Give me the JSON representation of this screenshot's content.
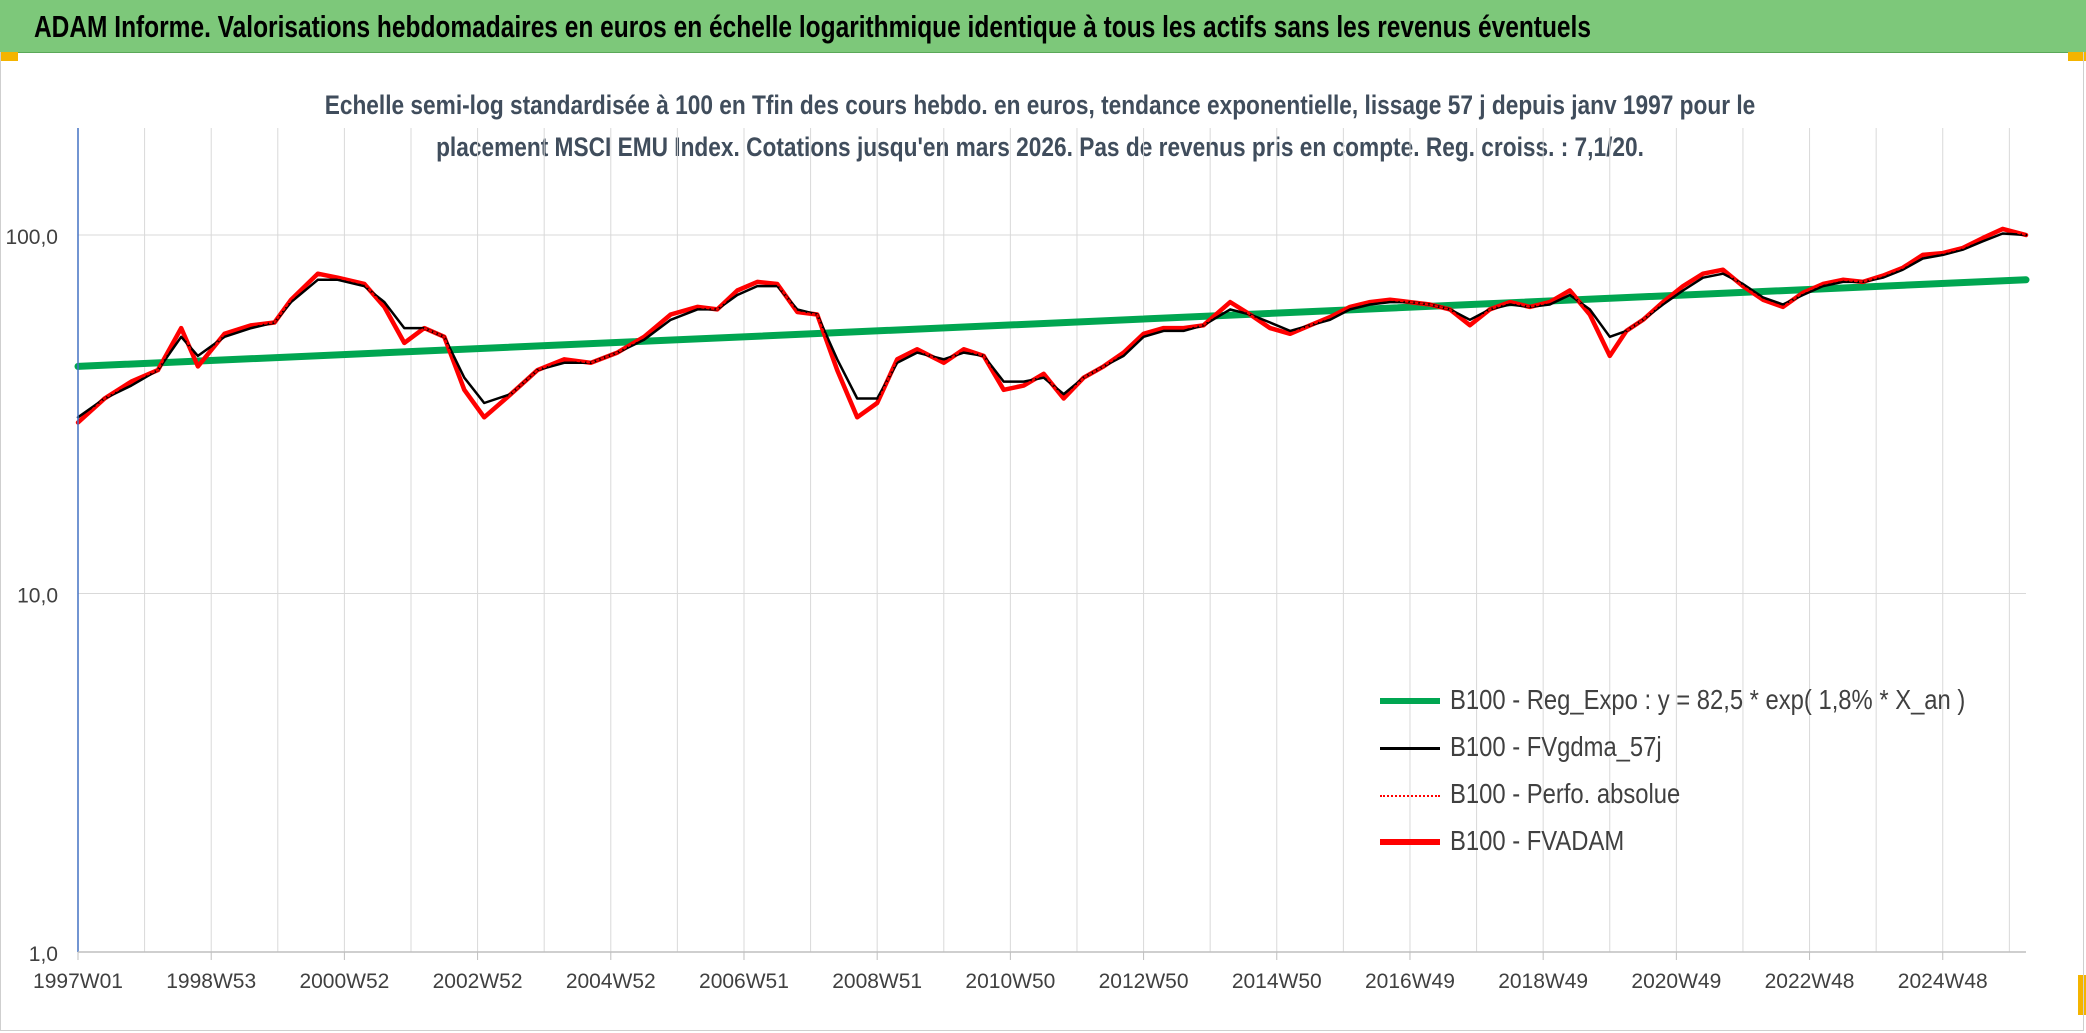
{
  "header": {
    "title": "ADAM Informe. Valorisations hebdomadaires en euros en échelle logarithmique identique à tous les actifs sans les revenus éventuels"
  },
  "subtitle": {
    "line1": "Echelle semi-log standardisée à 100 en Tfin des cours hebdo. en euros, tendance exponentielle, lissage 57 j depuis janv 1997 pour le",
    "line2": "placement MSCI EMU Index. Cotations jusqu'en mars 2026. Pas de revenus pris en compte. Reg. croiss. : 7,1/20."
  },
  "colors": {
    "header_bg": "#7dc87a",
    "reg_expo": "#00a651",
    "fvgdma": "#000000",
    "perfo": "#ff0000",
    "fvadam": "#ff0000",
    "axis": "#4472c4",
    "grid": "#d9d9d9"
  },
  "chart_data": {
    "type": "line",
    "y_scale": "log",
    "ylim": [
      1,
      200
    ],
    "y_ticks": [
      {
        "value": 1,
        "label": "1,0"
      },
      {
        "value": 10,
        "label": "10,0"
      },
      {
        "value": 100,
        "label": "100,0"
      }
    ],
    "x_range": [
      1997.0,
      2026.25
    ],
    "x_ticks": [
      {
        "x": 1997.0,
        "label": "1997W01"
      },
      {
        "x": 1999.0,
        "label": "1998W53"
      },
      {
        "x": 2001.0,
        "label": "2000W52"
      },
      {
        "x": 2003.0,
        "label": "2002W52"
      },
      {
        "x": 2005.0,
        "label": "2004W52"
      },
      {
        "x": 2007.0,
        "label": "2006W51"
      },
      {
        "x": 2009.0,
        "label": "2008W51"
      },
      {
        "x": 2011.0,
        "label": "2010W50"
      },
      {
        "x": 2013.0,
        "label": "2012W50"
      },
      {
        "x": 2015.0,
        "label": "2014W50"
      },
      {
        "x": 2017.0,
        "label": "2016W49"
      },
      {
        "x": 2019.0,
        "label": "2018W49"
      },
      {
        "x": 2021.0,
        "label": "2020W49"
      },
      {
        "x": 2023.0,
        "label": "2022W48"
      },
      {
        "x": 2025.0,
        "label": "2024W48"
      }
    ],
    "vertical_grid_step_years": 1,
    "legend_position": "bottom-right",
    "series": [
      {
        "name": "B100 - Reg_Expo : y = 82,5 * exp( 1,8% *  X_an )",
        "style": "thick-solid",
        "x": [
          1997.0,
          2026.25
        ],
        "y": [
          43,
          75
        ]
      },
      {
        "name": "B100 - FVgdma_57j",
        "style": "thin-solid",
        "x": [
          1997.0,
          1997.4,
          1997.8,
          1998.2,
          1998.55,
          1998.8,
          1999.2,
          1999.6,
          1999.95,
          2000.2,
          2000.6,
          2000.9,
          2001.3,
          2001.6,
          2001.9,
          2002.2,
          2002.5,
          2002.8,
          2003.1,
          2003.5,
          2003.9,
          2004.3,
          2004.7,
          2005.1,
          2005.5,
          2005.9,
          2006.3,
          2006.6,
          2006.9,
          2007.2,
          2007.5,
          2007.8,
          2008.1,
          2008.4,
          2008.7,
          2009.0,
          2009.3,
          2009.6,
          2010.0,
          2010.3,
          2010.6,
          2010.9,
          2011.2,
          2011.5,
          2011.8,
          2012.1,
          2012.4,
          2012.7,
          2013.0,
          2013.3,
          2013.6,
          2013.9,
          2014.3,
          2014.6,
          2014.9,
          2015.2,
          2015.5,
          2015.8,
          2016.1,
          2016.4,
          2016.7,
          2017.0,
          2017.3,
          2017.6,
          2017.9,
          2018.2,
          2018.5,
          2018.8,
          2019.1,
          2019.4,
          2019.7,
          2020.0,
          2020.25,
          2020.5,
          2020.8,
          2021.1,
          2021.4,
          2021.7,
          2022.0,
          2022.3,
          2022.6,
          2022.9,
          2023.2,
          2023.5,
          2023.8,
          2024.1,
          2024.4,
          2024.7,
          2025.0,
          2025.3,
          2025.6,
          2025.9,
          2026.25
        ],
        "y": [
          31,
          35,
          38,
          42,
          52,
          46,
          52,
          55,
          57,
          65,
          75,
          75,
          72,
          65,
          55,
          55,
          52,
          40,
          34,
          36,
          42,
          44,
          44,
          47,
          51,
          58,
          62,
          62,
          68,
          72,
          72,
          62,
          60,
          45,
          35,
          35,
          44,
          47,
          45,
          47,
          46,
          39,
          39,
          40,
          36,
          40,
          43,
          46,
          52,
          54,
          54,
          56,
          62,
          60,
          57,
          54,
          56,
          58,
          62,
          64,
          65,
          65,
          64,
          62,
          58,
          62,
          64,
          63,
          64,
          68,
          62,
          52,
          54,
          58,
          64,
          70,
          76,
          78,
          73,
          67,
          64,
          68,
          72,
          74,
          74,
          76,
          80,
          86,
          88,
          91,
          96,
          101,
          100
        ]
      },
      {
        "name": "B100 - Perfo. absolue",
        "style": "dotted",
        "x": [
          1997.0,
          1997.4,
          1997.8,
          1998.2,
          1998.55,
          1998.8,
          1999.2,
          1999.6,
          1999.95,
          2000.2,
          2000.6,
          2000.9,
          2001.3,
          2001.6,
          2001.9,
          2002.2,
          2002.5,
          2002.8,
          2003.1,
          2003.5,
          2003.9,
          2004.3,
          2004.7,
          2005.1,
          2005.5,
          2005.9,
          2006.3,
          2006.6,
          2006.9,
          2007.2,
          2007.5,
          2007.8,
          2008.1,
          2008.4,
          2008.7,
          2009.0,
          2009.3,
          2009.6,
          2010.0,
          2010.3,
          2010.6,
          2010.9,
          2011.2,
          2011.5,
          2011.8,
          2012.1,
          2012.4,
          2012.7,
          2013.0,
          2013.3,
          2013.6,
          2013.9,
          2014.3,
          2014.6,
          2014.9,
          2015.2,
          2015.5,
          2015.8,
          2016.1,
          2016.4,
          2016.7,
          2017.0,
          2017.3,
          2017.6,
          2017.9,
          2018.2,
          2018.5,
          2018.8,
          2019.1,
          2019.4,
          2019.7,
          2020.0,
          2020.25,
          2020.5,
          2020.8,
          2021.1,
          2021.4,
          2021.7,
          2022.0,
          2022.3,
          2022.6,
          2022.9,
          2023.2,
          2023.5,
          2023.8,
          2024.1,
          2024.4,
          2024.7,
          2025.0,
          2025.3,
          2025.6,
          2025.9,
          2026.25
        ],
        "y": [
          30,
          35,
          39,
          42,
          55,
          43,
          53,
          56,
          57,
          66,
          78,
          76,
          73,
          63,
          50,
          55,
          52,
          37,
          31,
          36,
          42,
          45,
          44,
          47,
          52,
          60,
          63,
          62,
          70,
          74,
          73,
          61,
          60,
          42,
          31,
          34,
          45,
          48,
          44,
          48,
          46,
          37,
          38,
          41,
          35,
          40,
          43,
          47,
          53,
          55,
          55,
          56,
          65,
          60,
          55,
          53,
          56,
          59,
          63,
          65,
          66,
          65,
          64,
          62,
          56,
          62,
          65,
          63,
          65,
          70,
          60,
          46,
          54,
          58,
          65,
          72,
          78,
          80,
          72,
          66,
          63,
          69,
          73,
          75,
          74,
          77,
          81,
          88,
          89,
          92,
          98,
          104,
          100
        ]
      },
      {
        "name": "B100 - FVADAM",
        "style": "thick-solid",
        "x": [
          1997.0,
          1997.4,
          1997.8,
          1998.2,
          1998.55,
          1998.8,
          1999.2,
          1999.6,
          1999.95,
          2000.2,
          2000.6,
          2000.9,
          2001.3,
          2001.6,
          2001.9,
          2002.2,
          2002.5,
          2002.8,
          2003.1,
          2003.5,
          2003.9,
          2004.3,
          2004.7,
          2005.1,
          2005.5,
          2005.9,
          2006.3,
          2006.6,
          2006.9,
          2007.2,
          2007.5,
          2007.8,
          2008.1,
          2008.4,
          2008.7,
          2009.0,
          2009.3,
          2009.6,
          2010.0,
          2010.3,
          2010.6,
          2010.9,
          2011.2,
          2011.5,
          2011.8,
          2012.1,
          2012.4,
          2012.7,
          2013.0,
          2013.3,
          2013.6,
          2013.9,
          2014.3,
          2014.6,
          2014.9,
          2015.2,
          2015.5,
          2015.8,
          2016.1,
          2016.4,
          2016.7,
          2017.0,
          2017.3,
          2017.6,
          2017.9,
          2018.2,
          2018.5,
          2018.8,
          2019.1,
          2019.4,
          2019.7,
          2020.0,
          2020.25,
          2020.5,
          2020.8,
          2021.1,
          2021.4,
          2021.7,
          2022.0,
          2022.3,
          2022.6,
          2022.9,
          2023.2,
          2023.5,
          2023.8,
          2024.1,
          2024.4,
          2024.7,
          2025.0,
          2025.3,
          2025.6,
          2025.9,
          2026.25
        ],
        "y": [
          30,
          35,
          39,
          42,
          55,
          43,
          53,
          56,
          57,
          66,
          78,
          76,
          73,
          63,
          50,
          55,
          52,
          37,
          31,
          36,
          42,
          45,
          44,
          47,
          52,
          60,
          63,
          62,
          70,
          74,
          73,
          61,
          60,
          42,
          31,
          34,
          45,
          48,
          44,
          48,
          46,
          37,
          38,
          41,
          35,
          40,
          43,
          47,
          53,
          55,
          55,
          56,
          65,
          60,
          55,
          53,
          56,
          59,
          63,
          65,
          66,
          65,
          64,
          62,
          56,
          62,
          65,
          63,
          65,
          70,
          60,
          46,
          54,
          58,
          65,
          72,
          78,
          80,
          72,
          66,
          63,
          69,
          73,
          75,
          74,
          77,
          81,
          88,
          89,
          92,
          98,
          104,
          100
        ]
      }
    ]
  },
  "legend": {
    "items": [
      {
        "label": "B100 - Reg_Expo : y = 82,5 * exp( 1,8% *  X_an )"
      },
      {
        "label": "B100 - FVgdma_57j"
      },
      {
        "label": "B100 - Perfo. absolue"
      },
      {
        "label": "B100 - FVADAM"
      }
    ]
  }
}
